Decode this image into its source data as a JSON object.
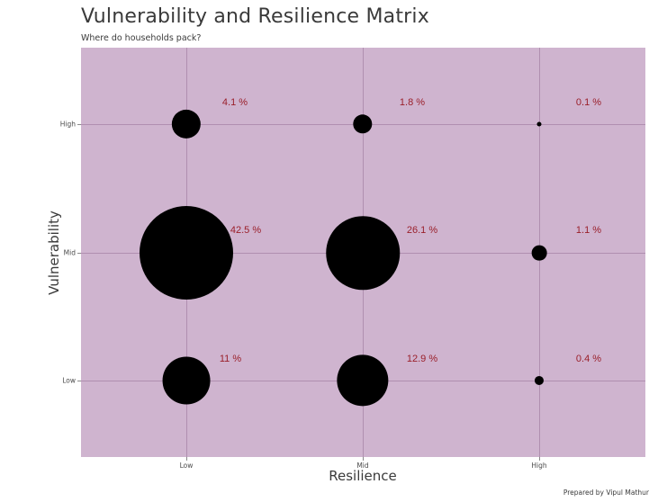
{
  "chart_data": {
    "type": "scatter",
    "subtype": "bubble-matrix",
    "title": "Vulnerability and Resilience Matrix",
    "subtitle": "Where do households pack?",
    "xlabel": "Resilience",
    "ylabel": "Vulnerability",
    "x_categories": [
      "Low",
      "Mid",
      "High"
    ],
    "y_categories": [
      "Low",
      "Mid",
      "High"
    ],
    "grid": true,
    "legend": "none",
    "caption": "Prepared by Vipul Mathur",
    "colors": {
      "panel_background": "#cfb4cf",
      "gridline": "#b08fb0",
      "bubble": "#000000",
      "label": "#9a1f2a"
    },
    "points": [
      {
        "resilience": "Low",
        "vulnerability": "High",
        "value": 4.1,
        "label": "4.1 %"
      },
      {
        "resilience": "Mid",
        "vulnerability": "High",
        "value": 1.8,
        "label": "1.8 %"
      },
      {
        "resilience": "High",
        "vulnerability": "High",
        "value": 0.1,
        "label": "0.1 %"
      },
      {
        "resilience": "Low",
        "vulnerability": "Mid",
        "value": 42.5,
        "label": "42.5 %"
      },
      {
        "resilience": "Mid",
        "vulnerability": "Mid",
        "value": 26.1,
        "label": "26.1 %"
      },
      {
        "resilience": "High",
        "vulnerability": "Mid",
        "value": 1.1,
        "label": "1.1 %"
      },
      {
        "resilience": "Low",
        "vulnerability": "Low",
        "value": 11,
        "label": "11 %"
      },
      {
        "resilience": "Mid",
        "vulnerability": "Low",
        "value": 12.9,
        "label": "12.9 %"
      },
      {
        "resilience": "High",
        "vulnerability": "Low",
        "value": 0.4,
        "label": "0.4 %"
      }
    ]
  }
}
